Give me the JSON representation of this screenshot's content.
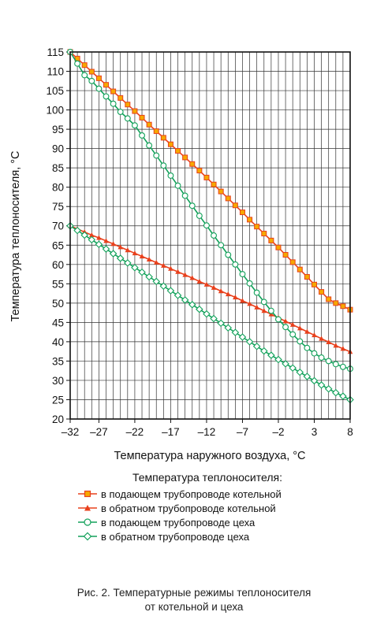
{
  "chart_data": {
    "type": "line",
    "xlabel": "Температура наружного воздуха, °C",
    "ylabel": "Температура теплоносителя, °C",
    "xlim": [
      -31,
      8
    ],
    "ylim": [
      20,
      115
    ],
    "xticks": [
      -32,
      -27,
      -22,
      -17,
      -12,
      -7,
      -2,
      3,
      8
    ],
    "xtick_labels": [
      "–32",
      "–27",
      "–22",
      "–17",
      "–12",
      "–7",
      "–2",
      "3",
      "8"
    ],
    "yticks": [
      20,
      25,
      30,
      35,
      40,
      45,
      50,
      55,
      60,
      65,
      70,
      75,
      80,
      85,
      90,
      95,
      100,
      105,
      110,
      115
    ],
    "grid": true,
    "legend_title": "Температура теплоносителя:",
    "legend_position": "below",
    "series": [
      {
        "name": "в подающем трубопроводе котельной",
        "marker": "square",
        "color": "#e8401c",
        "marker_fill": "#f6a800",
        "x": [
          -31,
          -30,
          -29,
          -28,
          -27,
          -26,
          -25,
          -24,
          -23,
          -22,
          -21,
          -20,
          -19,
          -18,
          -17,
          -16,
          -15,
          -14,
          -13,
          -12,
          -11,
          -10,
          -9,
          -8,
          -7,
          -6,
          -5,
          -4,
          -3,
          -2,
          -1,
          0,
          1,
          2,
          3,
          4,
          5,
          6,
          7,
          8
        ],
        "y": [
          115,
          113.3,
          111.6,
          109.9,
          108.2,
          106.5,
          104.8,
          103.1,
          101.4,
          99.7,
          98.0,
          96.2,
          94.5,
          92.8,
          91.1,
          89.4,
          87.7,
          86.0,
          84.3,
          82.5,
          80.7,
          78.9,
          77.1,
          75.3,
          73.5,
          71.6,
          69.8,
          68.0,
          66.2,
          64.4,
          62.5,
          60.6,
          58.7,
          56.8,
          54.8,
          52.9,
          51.0,
          50.0,
          49.2,
          48.3
        ]
      },
      {
        "name": "в обратном трубопроводе котельной",
        "marker": "triangle",
        "color": "#e8401c",
        "marker_fill": "#e8401c",
        "x": [
          -31,
          -30,
          -29,
          -28,
          -27,
          -26,
          -25,
          -24,
          -23,
          -22,
          -21,
          -20,
          -19,
          -18,
          -17,
          -16,
          -15,
          -14,
          -13,
          -12,
          -11,
          -10,
          -9,
          -8,
          -7,
          -6,
          -5,
          -4,
          -3,
          -2,
          -1,
          0,
          1,
          2,
          3,
          4,
          5,
          6,
          7,
          8
        ],
        "y": [
          70,
          69.2,
          68.4,
          67.6,
          66.9,
          66.1,
          65.3,
          64.5,
          63.7,
          62.9,
          62.1,
          61.3,
          60.5,
          59.7,
          58.9,
          58.1,
          57.3,
          56.5,
          55.6,
          54.8,
          54.0,
          53.1,
          52.3,
          51.5,
          50.6,
          49.8,
          48.9,
          48.0,
          47.1,
          46.2,
          45.3,
          44.4,
          43.5,
          42.6,
          41.7,
          40.8,
          39.9,
          39.0,
          38.2,
          37.4
        ]
      },
      {
        "name": "в подающем трубопроводе цеха",
        "marker": "circle",
        "color": "#12a15a",
        "marker_fill": "#ffffff",
        "x": [
          -31,
          -30,
          -29,
          -28,
          -27,
          -26,
          -25,
          -24,
          -23,
          -22,
          -21,
          -20,
          -19,
          -18,
          -17,
          -16,
          -15,
          -14,
          -13,
          -12,
          -11,
          -10,
          -9,
          -8,
          -7,
          -6,
          -5,
          -4,
          -3,
          -2,
          -1,
          0,
          1,
          2,
          3,
          4,
          5,
          6,
          7,
          8
        ],
        "y": [
          115,
          112.0,
          109.0,
          107.5,
          105.5,
          103.5,
          101.6,
          99.5,
          97.8,
          96.0,
          93.4,
          90.8,
          88.2,
          85.6,
          83.0,
          80.4,
          77.8,
          75.2,
          72.6,
          70.1,
          67.5,
          65.0,
          62.5,
          60.0,
          57.5,
          55.1,
          52.7,
          50.3,
          48.0,
          45.8,
          43.8,
          41.9,
          40.1,
          38.4,
          37.0,
          35.9,
          35.0,
          34.2,
          33.5,
          33.0
        ]
      },
      {
        "name": "в обратном трубопроводе цеха",
        "marker": "diamond",
        "color": "#12a15a",
        "marker_fill": "#ffffff",
        "x": [
          -31,
          -30,
          -29,
          -28,
          -27,
          -26,
          -25,
          -24,
          -23,
          -22,
          -21,
          -20,
          -19,
          -18,
          -17,
          -16,
          -15,
          -14,
          -13,
          -12,
          -11,
          -10,
          -9,
          -8,
          -7,
          -6,
          -5,
          -4,
          -3,
          -2,
          -1,
          0,
          1,
          2,
          3,
          4,
          5,
          6,
          7,
          8
        ],
        "y": [
          70,
          68.8,
          67.6,
          66.4,
          65.2,
          64.0,
          62.8,
          61.6,
          60.4,
          59.2,
          58.0,
          56.8,
          55.6,
          54.4,
          53.2,
          52.0,
          50.8,
          49.6,
          48.4,
          47.2,
          46.0,
          44.8,
          43.6,
          42.4,
          41.2,
          40.0,
          38.8,
          37.6,
          36.5,
          35.4,
          34.3,
          33.2,
          32.1,
          31.0,
          29.9,
          28.8,
          27.8,
          26.8,
          25.9,
          25.0
        ]
      }
    ]
  },
  "caption": {
    "line1": "Рис. 2. Температурные режимы теплоносителя",
    "line2": "от котельной и цеха"
  }
}
